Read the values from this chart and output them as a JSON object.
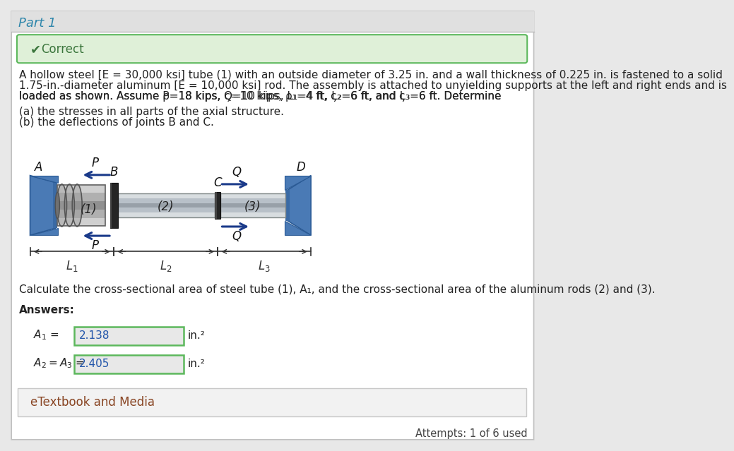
{
  "title": "Part 1",
  "title_color": "#2E86AB",
  "bg_color": "#e8e8e8",
  "white": "#ffffff",
  "correct_bg": "#dff0d8",
  "correct_border": "#5cb85c",
  "correct_text": "#3c763d",
  "correct_label": "Correct",
  "problem_line1": "A hollow steel [",
  "problem_line2": "1.75-in.-diameter aluminum [",
  "problem_line3": "loaded as shown. Assume ",
  "part_a": "(a) the stresses in all parts of the axial structure.",
  "part_b": "(b) the deflections of joints B and C.",
  "calc_text": "Calculate the cross-sectional area of steel tube (1), A₁, and the cross-sectional area of the aluminum rods (2) and (3).",
  "answers_label": "Answers:",
  "a1_value": "2.138",
  "a2_value": "2.405",
  "units": "in.²",
  "etextbook": "eTextbook and Media",
  "attempts": "Attempts: 1 of 6 used",
  "answer_box_color": "#e8e8e8",
  "answer_box_border": "#5cb85c",
  "answer_text_color": "#2255aa",
  "wall_color": "#4a7ab5",
  "wall_dark": "#2a5a95",
  "tube_color": "#a8a8a8",
  "rod_color": "#c0c8d0",
  "disc_color": "#303030",
  "arrow_color": "#1a3a8a",
  "dim_color": "#333333",
  "label_color": "#111111"
}
